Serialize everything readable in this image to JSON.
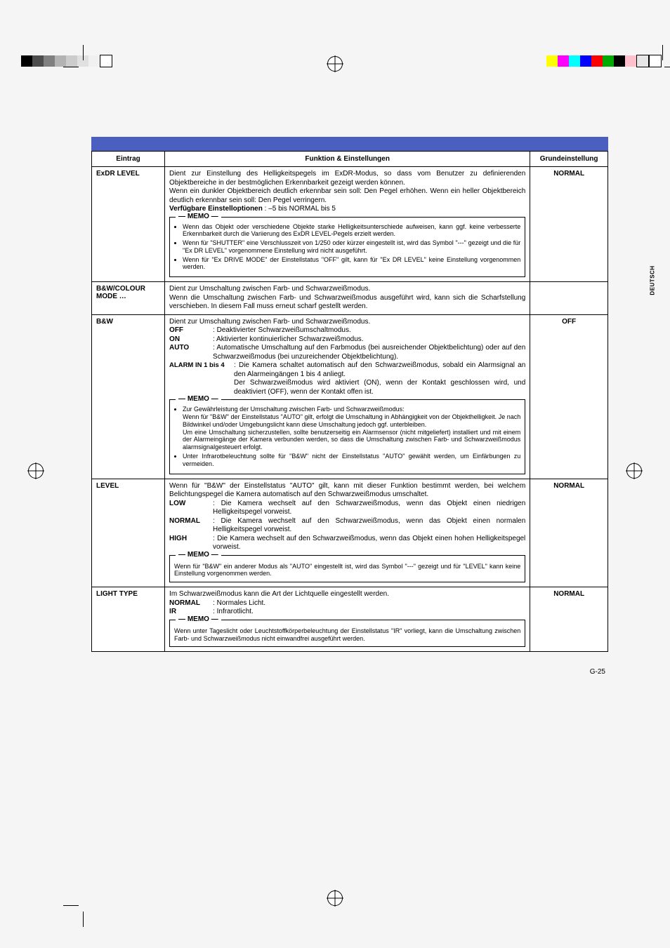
{
  "sideTab": "DEUTSCH",
  "pageNumber": "G-25",
  "headers": {
    "entry": "Eintrag",
    "func": "Funktion & Einstellungen",
    "default": "Grundeinstellung"
  },
  "cropColorsLeft": [
    "#000000",
    "#4d4d4d",
    "#808080",
    "#b3b3b3",
    "#cccccc",
    "#e0e0e0",
    "#f0f0f0",
    "#ffffff"
  ],
  "cropColorsRight": [
    "#ffff00",
    "#ff00ff",
    "#00ffff",
    "#0000ff",
    "#ff0000",
    "#00aa00",
    "#000000",
    "#ffc0cb",
    "#e6e6e6",
    "#ffffff"
  ],
  "rows": [
    {
      "entry": "ExDR LEVEL",
      "entryClass": "entry-cell",
      "default": "NORMAL",
      "desc": "Dient zur Einstellung des Helligkeitspegels im ExDR-Modus, so dass vom Benutzer zu definierenden Objektbereiche in der bestmöglichen Erkennbarkeit gezeigt werden können.\nWenn ein dunkler Objektbereich deutlich erkennbar sein soll: Den Pegel erhöhen. Wenn ein heller Objektbereich deutlich erkennbar sein soll: Den Pegel verringern.",
      "desc2": "<b>Verfügbare Einstelloptionen</b> : –5 bis NORMAL bis 5",
      "memoTitle": "MEMO",
      "memo": [
        "Wenn das Objekt oder verschiedene Objekte starke Helligkeitsunterschiede aufweisen, kann ggf. keine verbesserte  Erkennbarkeit durch die Variierung des ExDR LEVEL-Pegels erzielt werden.",
        "Wenn für \"SHUTTER\" eine Verschlusszeit von 1/250 oder kürzer eingestellt ist, wird das Symbol \"---\" gezeigt und die für \"Ex DR LEVEL\" vorgenommene Einstellung wird nicht ausgeführt.",
        "Wenn für \"Ex DRIVE MODE\" der Einstellstatus \"OFF\" gilt, kann für \"Ex DR LEVEL\" keine Einstellung vorgenommen werden."
      ]
    },
    {
      "entry": "B&W/COLOUR MODE …",
      "entryClass": "entry-cell",
      "default": "",
      "desc": "Dient zur Umschaltung zwischen Farb- und Schwarzweißmodus.\nWenn die Umschaltung zwischen Farb- und Schwarzweißmodus ausgeführt wird, kann sich die Scharfstellung verschieben. In diesem Fall muss erneut scharf gestellt werden."
    },
    {
      "entry": "B&W",
      "entryClass": "entry-sub",
      "default": "OFF",
      "desc": "Dient zur Umschaltung zwischen Farb- und Schwarzweißmodus.",
      "options": [
        {
          "k": "OFF",
          "v": ": Deaktivierter Schwarzweißumschaltmodus."
        },
        {
          "k": "ON",
          "v": ": Aktivierter kontinuierlicher Schwarzweißmodus."
        },
        {
          "k": "AUTO",
          "v": ": Automatische Umschaltung auf den Farbmodus (bei ausreichender Objektbelichtung) oder auf den Schwarzweißmodus (bei unzureichender Objektbelichtung)."
        }
      ],
      "optionsWide": [
        {
          "k": "ALARM IN 1 bis 4",
          "v": ": Die Kamera schaltet automatisch auf den Schwarzweißmodus, sobald ein Alarmsignal an den Alarmeingängen 1 bis 4 anliegt.\nDer Schwarzweißmodus wird aktiviert (ON), wenn der Kontakt geschlossen wird, und deaktiviert (OFF), wenn der Kontakt offen ist."
        }
      ],
      "memoTitle": "MEMO",
      "memo": [
        "Zur Gewährleistung der Umschaltung zwischen Farb- und Schwarzweißmodus:\nWenn für \"B&W\" der Einstellstatus \"AUTO\" gilt, erfolgt die Umschaltung in Abhängigkeit von der Objekthelligkeit. Je nach Bildwinkel und/oder Umgebungslicht kann diese Umschaltung jedoch ggf. unterbleiben.\nUm eine Umschaltung sicherzustellen, sollte benutzerseitig ein Alarmsensor (nicht mitgeliefert) installiert und mit einem der Alarmeingänge der Kamera verbunden werden, so dass die Umschaltung zwischen Farb- und Schwarzweißmodus alarmsignalgesteuert erfolgt.",
        "Unter Infrarotbeleuchtung sollte für \"B&W\" nicht der Einstellstatus \"AUTO\" gewählt werden, um Einfärbungen zu vermeiden."
      ]
    },
    {
      "entry": "LEVEL",
      "entryClass": "entry-sub",
      "default": "NORMAL",
      "desc": "Wenn für \"B&W\" der Einstellstatus \"AUTO\" gilt, kann mit dieser Funktion bestimmt werden, bei welchem Belichtungspegel die Kamera automatisch auf den Schwarzweißmodus umschaltet.",
      "options": [
        {
          "k": "LOW",
          "v": ": Die Kamera wechselt auf den Schwarzweißmodus, wenn das Objekt einen niedrigen Helligkeitspegel vorweist."
        },
        {
          "k": "NORMAL",
          "v": ": Die Kamera wechselt auf den Schwarzweißmodus, wenn das Objekt einen normalen Helligkeitspegel vorweist."
        },
        {
          "k": "HIGH",
          "v": ": Die Kamera wechselt auf den Schwarzweißmodus, wenn das Objekt einen hohen Helligkeitspegel vorweist."
        }
      ],
      "memoTitle": "MEMO",
      "memoPlain": "Wenn für \"B&W\" ein anderer Modus als \"AUTO\" eingestellt ist, wird das Symbol \"---\" gezeigt und für \"LEVEL\" kann keine Einstellung vorgenommen werden."
    },
    {
      "entry": "LIGHT TYPE",
      "entryClass": "entry-sub",
      "default": "NORMAL",
      "desc": "Im Schwarzweißmodus kann die Art der Lichtquelle eingestellt werden.",
      "options": [
        {
          "k": "NORMAL",
          "v": ": Normales Licht."
        },
        {
          "k": "IR",
          "v": ": Infrarotlicht."
        }
      ],
      "memoTitle": "MEMO",
      "memoPlain": "Wenn unter Tageslicht oder Leuchtstoffkörperbeleuchtung der Einstellstatus \"IR\" vorliegt, kann die Umschaltung zwischen Farb- und Schwarzweißmodus nicht einwandfrei ausgeführt werden."
    }
  ]
}
